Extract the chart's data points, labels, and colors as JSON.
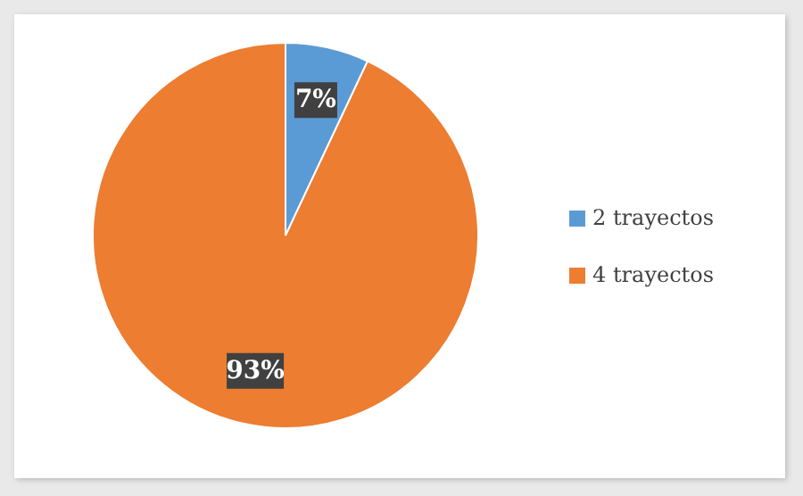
{
  "chart_data": {
    "type": "pie",
    "categories": [
      "2 trayectos",
      "4 trayectos"
    ],
    "values": [
      7,
      93
    ],
    "colors": [
      "#5b9bd5",
      "#ed7d31"
    ],
    "value_labels": [
      "7%",
      "93%"
    ],
    "legend": "right"
  }
}
